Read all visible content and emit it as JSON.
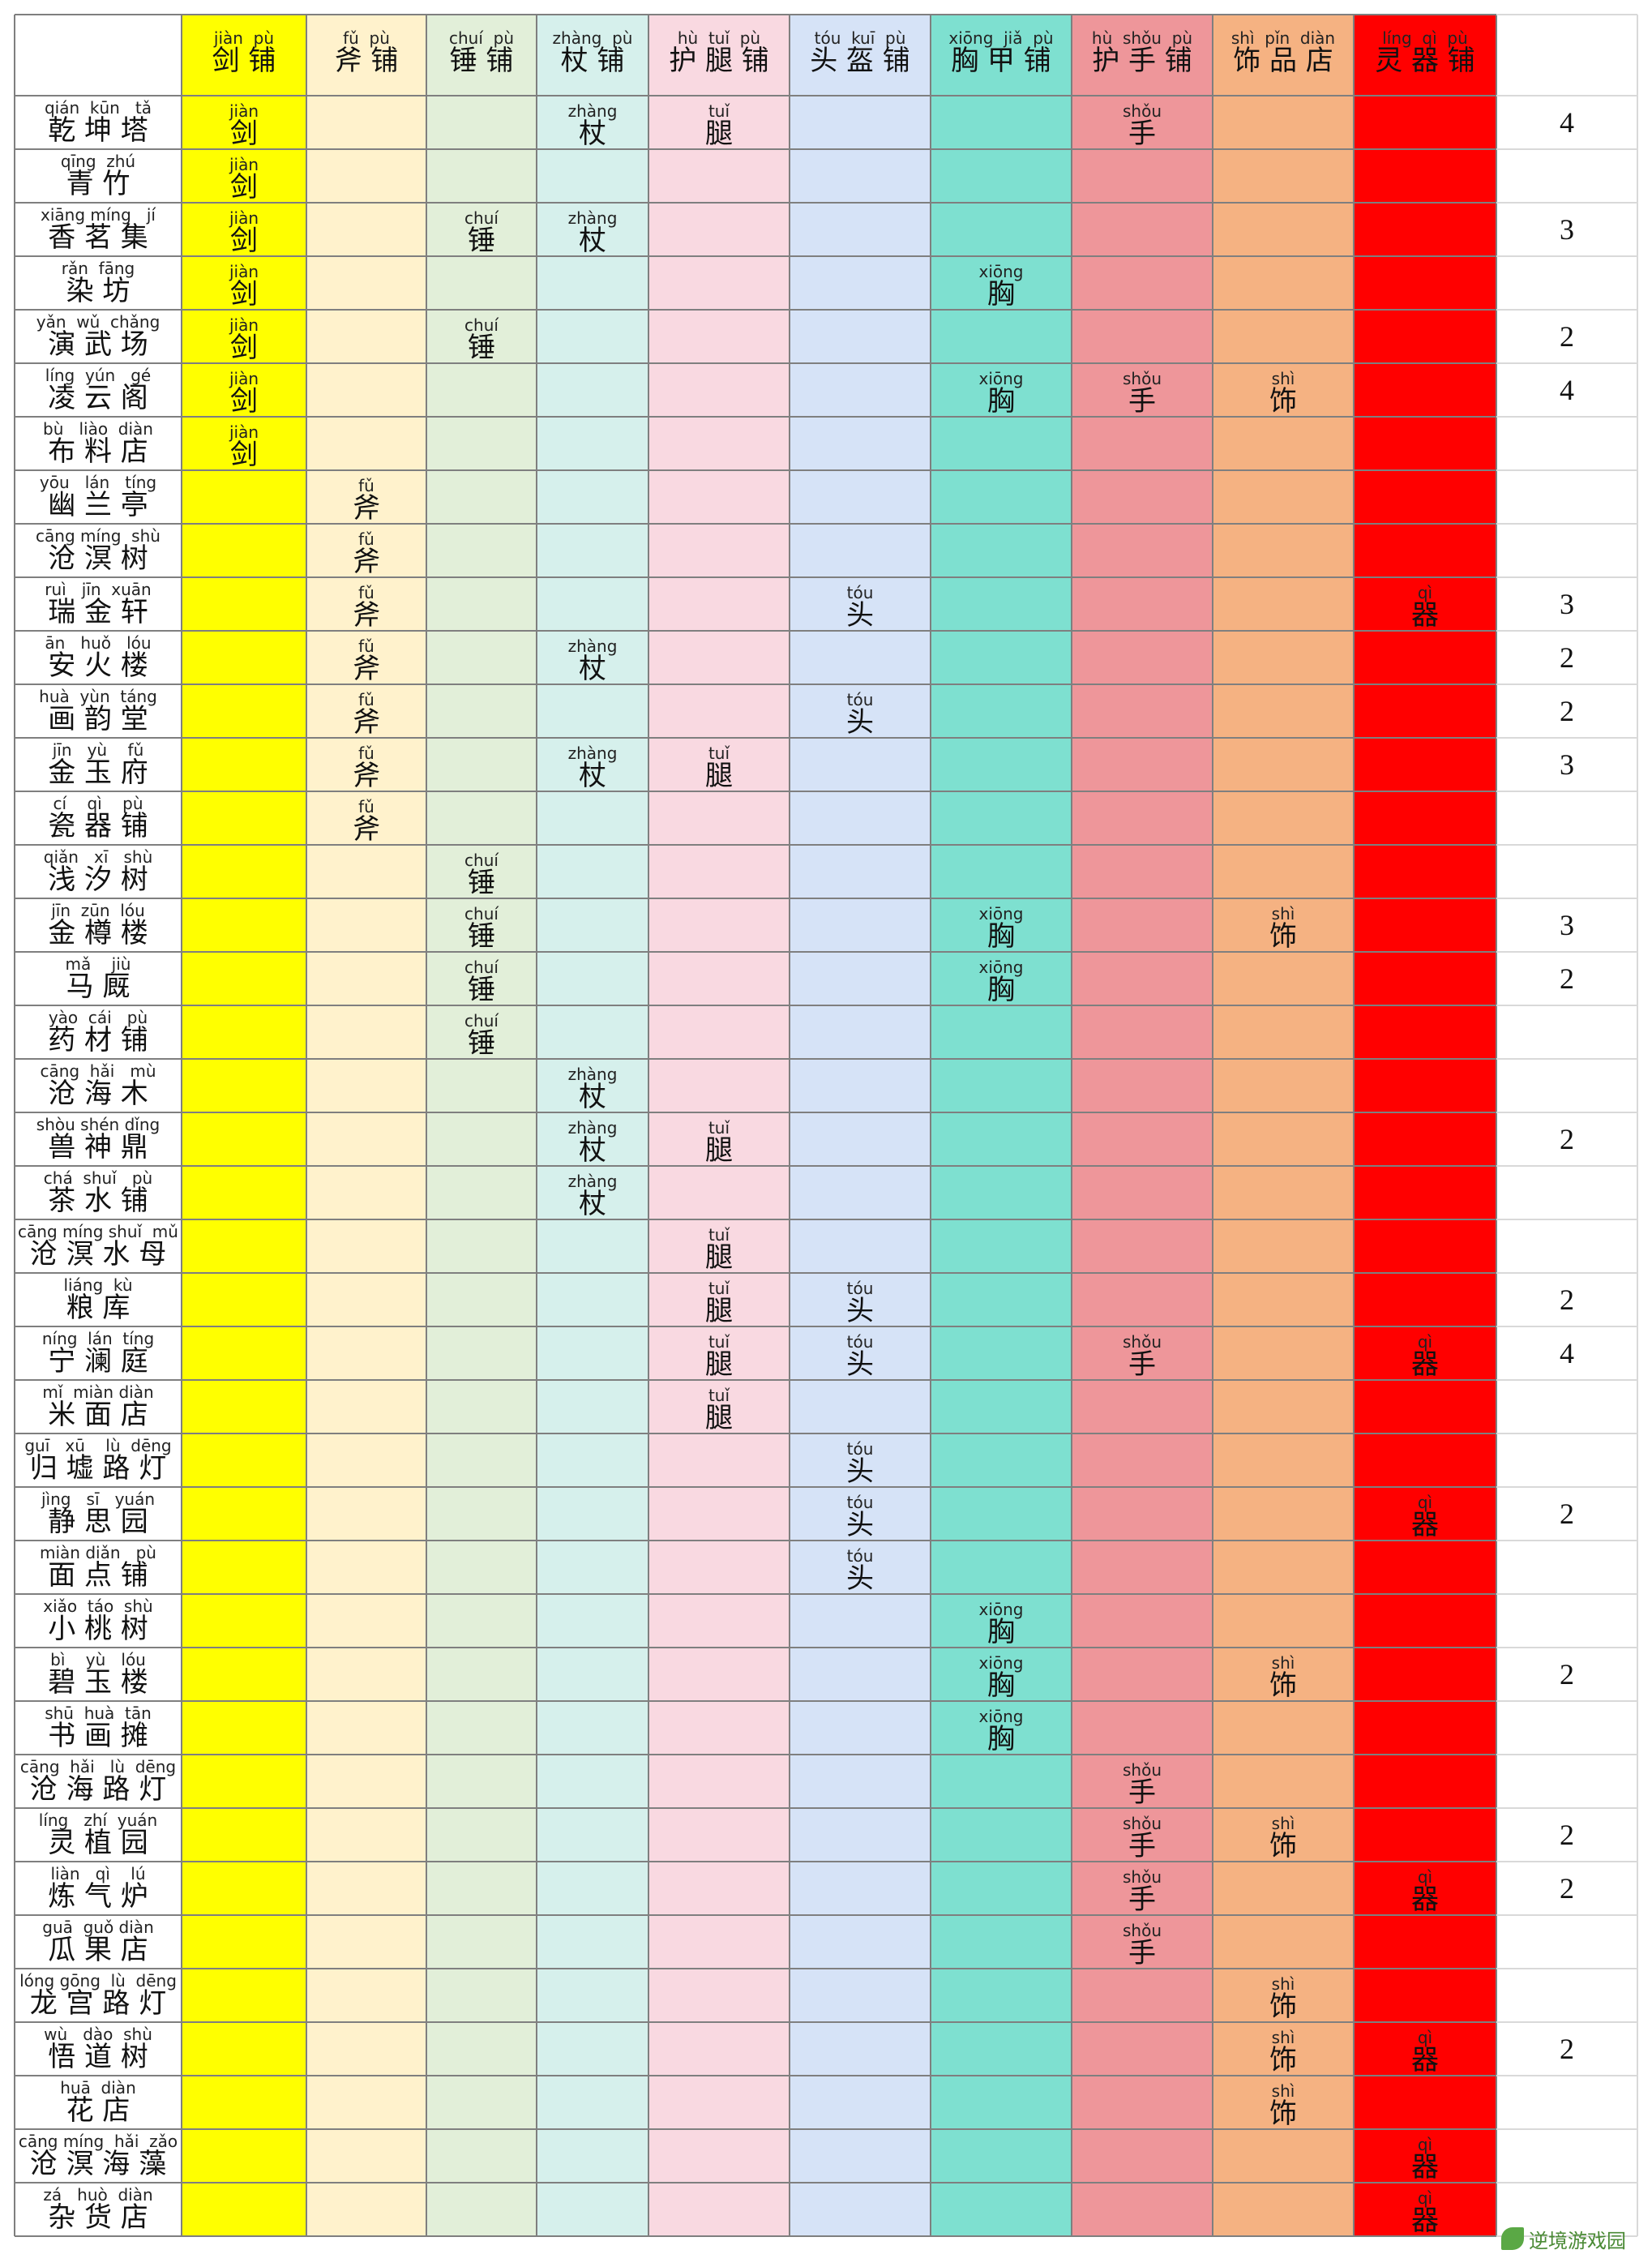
{
  "colors": {
    "jian": "#ffff00",
    "fu": "#fff2cc",
    "chui": "#e2efd9",
    "zhang": "#d6f0ec",
    "tui": "#f9d9e1",
    "tou": "#d6e3f7",
    "xiong": "#7ee0d0",
    "shou": "#ee969a",
    "shi": "#f5b282",
    "qi": "#ff0000"
  },
  "headers": [
    {
      "key": "jian",
      "pinyin": "jiàn  pù",
      "hanzi": "剑 铺"
    },
    {
      "key": "fu",
      "pinyin": "fǔ  pù",
      "hanzi": "斧 铺"
    },
    {
      "key": "chui",
      "pinyin": "chuí  pù",
      "hanzi": "锤 铺"
    },
    {
      "key": "zhang",
      "pinyin": "zhàng  pù",
      "hanzi": "杖 铺"
    },
    {
      "key": "tui",
      "pinyin": "hù  tuǐ  pù",
      "hanzi": "护 腿 铺"
    },
    {
      "key": "tou",
      "pinyin": "tóu  kuī  pù",
      "hanzi": "头 盔 铺"
    },
    {
      "key": "xiong",
      "pinyin": "xiōng  jiǎ  pù",
      "hanzi": "胸 甲 铺"
    },
    {
      "key": "shou",
      "pinyin": "hù  shǒu  pù",
      "hanzi": "护 手 铺"
    },
    {
      "key": "shi",
      "pinyin": "shì  pǐn  diàn",
      "hanzi": "饰 品 店"
    },
    {
      "key": "qi",
      "pinyin": "líng  qì  pù",
      "hanzi": "灵 器 铺"
    }
  ],
  "marks": {
    "jian": {
      "pinyin": "jiàn",
      "hanzi": "剑"
    },
    "fu": {
      "pinyin": "fǔ",
      "hanzi": "斧"
    },
    "chui": {
      "pinyin": "chuí",
      "hanzi": "锤"
    },
    "zhang": {
      "pinyin": "zhàng",
      "hanzi": "杖"
    },
    "tui": {
      "pinyin": "tuǐ",
      "hanzi": "腿"
    },
    "tou": {
      "pinyin": "tóu",
      "hanzi": "头"
    },
    "xiong": {
      "pinyin": "xiōng",
      "hanzi": "胸"
    },
    "shou": {
      "pinyin": "shǒu",
      "hanzi": "手"
    },
    "shi": {
      "pinyin": "shì",
      "hanzi": "饰"
    },
    "qi": {
      "pinyin": "qì",
      "hanzi": "器"
    }
  },
  "rows": [
    {
      "pinyin": "qián  kūn   tǎ",
      "hanzi": "乾 坤 塔",
      "marks": [
        "jian",
        "zhang",
        "tui",
        "shou"
      ],
      "count": "4"
    },
    {
      "pinyin": "qīng  zhú",
      "hanzi": "青 竹",
      "marks": [
        "jian"
      ],
      "count": ""
    },
    {
      "pinyin": "xiāng míng   jí",
      "hanzi": "香 茗 集",
      "marks": [
        "jian",
        "chui",
        "zhang"
      ],
      "count": "3"
    },
    {
      "pinyin": "rǎn  fāng",
      "hanzi": "染 坊",
      "marks": [
        "jian",
        "xiong"
      ],
      "count": ""
    },
    {
      "pinyin": "yǎn  wǔ  chǎng",
      "hanzi": "演 武 场",
      "marks": [
        "jian",
        "chui"
      ],
      "count": "2"
    },
    {
      "pinyin": "líng  yún   gé",
      "hanzi": "凌 云 阁",
      "marks": [
        "jian",
        "xiong",
        "shou",
        "shi"
      ],
      "count": "4"
    },
    {
      "pinyin": "bù   liào  diàn",
      "hanzi": "布 料 店",
      "marks": [
        "jian"
      ],
      "count": ""
    },
    {
      "pinyin": "yōu   lán   tíng",
      "hanzi": "幽 兰 亭",
      "marks": [
        "fu"
      ],
      "count": ""
    },
    {
      "pinyin": "cāng míng  shù",
      "hanzi": "沧 溟 树",
      "marks": [
        "fu"
      ],
      "count": ""
    },
    {
      "pinyin": "ruì   jīn  xuān",
      "hanzi": "瑞 金 轩",
      "marks": [
        "fu",
        "tou",
        "qi"
      ],
      "count": "3"
    },
    {
      "pinyin": "ān   huǒ   lóu",
      "hanzi": "安 火 楼",
      "marks": [
        "fu",
        "zhang"
      ],
      "count": "2"
    },
    {
      "pinyin": "huà  yùn  táng",
      "hanzi": "画 韵 堂",
      "marks": [
        "fu",
        "tou"
      ],
      "count": "2"
    },
    {
      "pinyin": "jīn   yù    fǔ",
      "hanzi": "金 玉 府",
      "marks": [
        "fu",
        "zhang",
        "tui"
      ],
      "count": "3"
    },
    {
      "pinyin": "cí    qì    pù",
      "hanzi": "瓷 器 铺",
      "marks": [
        "fu"
      ],
      "count": ""
    },
    {
      "pinyin": "qiǎn   xī   shù",
      "hanzi": "浅 汐 树",
      "marks": [
        "chui"
      ],
      "count": ""
    },
    {
      "pinyin": "jīn  zūn  lóu",
      "hanzi": "金 樽 楼",
      "marks": [
        "chui",
        "xiong",
        "shi"
      ],
      "count": "3"
    },
    {
      "pinyin": "mǎ    jiù",
      "hanzi": "马 厩",
      "marks": [
        "chui",
        "xiong"
      ],
      "count": "2"
    },
    {
      "pinyin": "yào  cái   pù",
      "hanzi": "药 材 铺",
      "marks": [
        "chui"
      ],
      "count": ""
    },
    {
      "pinyin": "cāng  hǎi   mù",
      "hanzi": "沧 海 木",
      "marks": [
        "zhang"
      ],
      "count": ""
    },
    {
      "pinyin": "shòu shén dǐng",
      "hanzi": "兽 神 鼎",
      "marks": [
        "zhang",
        "tui"
      ],
      "count": "2"
    },
    {
      "pinyin": "chá  shuǐ   pù",
      "hanzi": "茶 水 铺",
      "marks": [
        "zhang"
      ],
      "count": ""
    },
    {
      "pinyin": "cāng míng shuǐ  mǔ",
      "hanzi": "沧 溟 水 母",
      "marks": [
        "tui"
      ],
      "count": ""
    },
    {
      "pinyin": "liáng  kù",
      "hanzi": "粮 库",
      "marks": [
        "tui",
        "tou"
      ],
      "count": "2"
    },
    {
      "pinyin": "níng  lán  tíng",
      "hanzi": "宁 澜 庭",
      "marks": [
        "tui",
        "tou",
        "shou",
        "qi"
      ],
      "count": "4"
    },
    {
      "pinyin": "mǐ  miàn diàn",
      "hanzi": "米 面 店",
      "marks": [
        "tui"
      ],
      "count": ""
    },
    {
      "pinyin": "guī   xū    lù  dēng",
      "hanzi": "归 墟 路 灯",
      "marks": [
        "tou"
      ],
      "count": ""
    },
    {
      "pinyin": "jìng   sī   yuán",
      "hanzi": "静 思 园",
      "marks": [
        "tou",
        "qi"
      ],
      "count": "2"
    },
    {
      "pinyin": "miàn diǎn   pù",
      "hanzi": "面 点 铺",
      "marks": [
        "tou"
      ],
      "count": ""
    },
    {
      "pinyin": "xiǎo  táo  shù",
      "hanzi": "小 桃 树",
      "marks": [
        "xiong"
      ],
      "count": ""
    },
    {
      "pinyin": "bì    yù   lóu",
      "hanzi": "碧 玉 楼",
      "marks": [
        "xiong",
        "shi"
      ],
      "count": "2"
    },
    {
      "pinyin": "shū  huà  tān",
      "hanzi": "书 画 摊",
      "marks": [
        "xiong"
      ],
      "count": ""
    },
    {
      "pinyin": "cāng  hǎi   lù  dēng",
      "hanzi": "沧 海 路 灯",
      "marks": [
        "shou"
      ],
      "count": ""
    },
    {
      "pinyin": "líng   zhí  yuán",
      "hanzi": "灵 植 园",
      "marks": [
        "shou",
        "shi"
      ],
      "count": "2"
    },
    {
      "pinyin": "liàn   qì    lú",
      "hanzi": "炼 气 炉",
      "marks": [
        "shou",
        "qi"
      ],
      "count": "2"
    },
    {
      "pinyin": "guā  guǒ diàn",
      "hanzi": "瓜 果 店",
      "marks": [
        "shou"
      ],
      "count": ""
    },
    {
      "pinyin": "lóng gōng  lù  dēng",
      "hanzi": "龙 宫 路 灯",
      "marks": [
        "shi"
      ],
      "count": ""
    },
    {
      "pinyin": "wù   dào  shù",
      "hanzi": "悟 道 树",
      "marks": [
        "shi",
        "qi"
      ],
      "count": "2"
    },
    {
      "pinyin": "huā  diàn",
      "hanzi": "花 店",
      "marks": [
        "shi"
      ],
      "count": ""
    },
    {
      "pinyin": "cāng míng  hǎi  zǎo",
      "hanzi": "沧 溟 海 藻",
      "marks": [
        "qi"
      ],
      "count": ""
    },
    {
      "pinyin": "zá   huò  diàn",
      "hanzi": "杂 货 店",
      "marks": [
        "qi"
      ],
      "count": ""
    }
  ],
  "logo": {
    "text": "逆境游戏园",
    "icon": "leaf-icon"
  }
}
